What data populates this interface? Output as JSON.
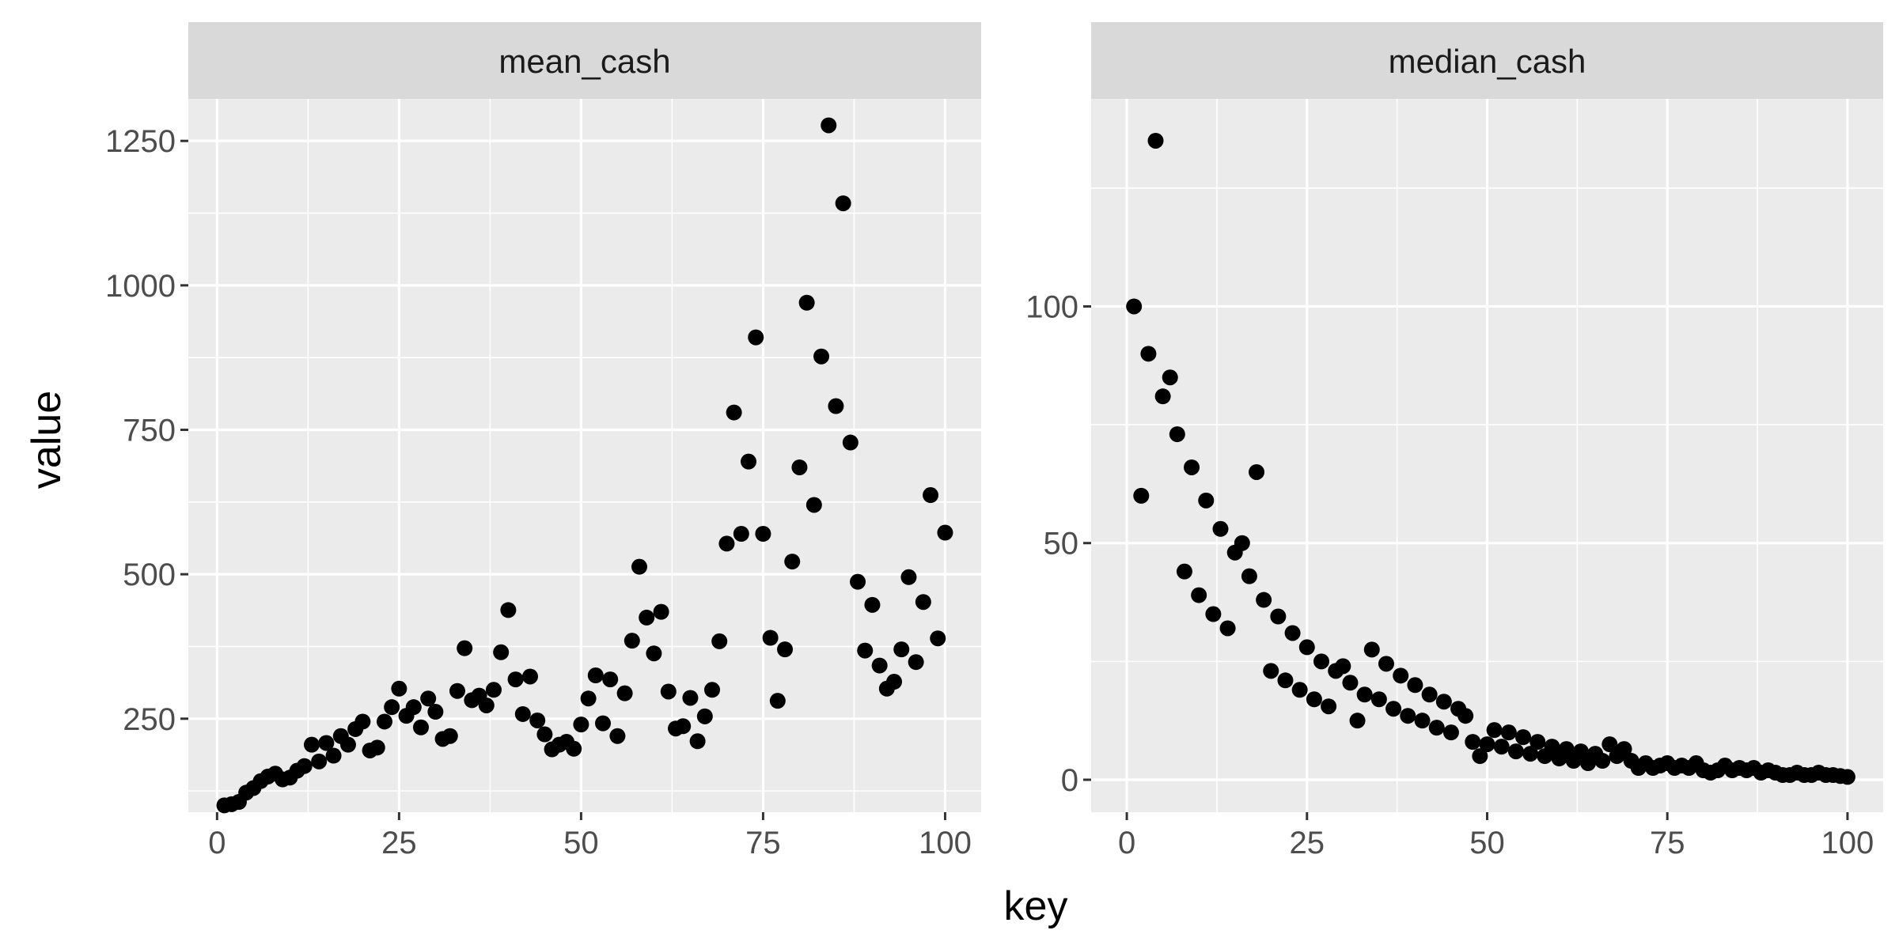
{
  "chart_data": {
    "type": "scatter",
    "xlabel": "key",
    "ylabel": "value",
    "point_color": "#000000",
    "panel_background": "#ebebeb",
    "strip_background": "#d9d9d9",
    "grid": true,
    "panels": [
      {
        "strip": "mean_cash",
        "xlim": [
          -3.95,
          104.95
        ],
        "ylim": [
          88.2,
          1322.8
        ],
        "x_ticks": [
          0,
          25,
          50,
          75,
          100
        ],
        "x_tick_labels": [
          "0",
          "25",
          "50",
          "75",
          "100"
        ],
        "y_ticks": [
          250,
          500,
          750,
          1000,
          1250
        ],
        "y_tick_labels": [
          "250",
          "500",
          "750",
          "1000",
          "1250"
        ],
        "x": [
          1,
          2,
          3,
          4,
          5,
          6,
          7,
          8,
          9,
          10,
          11,
          12,
          13,
          14,
          15,
          16,
          17,
          18,
          19,
          20,
          21,
          22,
          23,
          24,
          25,
          26,
          27,
          28,
          29,
          30,
          31,
          32,
          33,
          34,
          35,
          36,
          37,
          38,
          39,
          40,
          41,
          42,
          43,
          44,
          45,
          46,
          47,
          48,
          49,
          50,
          51,
          52,
          53,
          54,
          55,
          56,
          57,
          58,
          59,
          60,
          61,
          62,
          63,
          64,
          65,
          66,
          67,
          68,
          69,
          70,
          71,
          72,
          73,
          74,
          75,
          76,
          77,
          78,
          79,
          80,
          81,
          82,
          83,
          84,
          85,
          86,
          87,
          88,
          89,
          90,
          91,
          92,
          93,
          94,
          95,
          96,
          97,
          98,
          99,
          100
        ],
        "y": [
          100,
          102,
          106,
          122,
          130,
          142,
          150,
          155,
          145,
          148,
          160,
          168,
          205,
          176,
          208,
          186,
          220,
          205,
          232,
          245,
          195,
          200,
          245,
          270,
          302,
          255,
          270,
          235,
          285,
          262,
          215,
          220,
          298,
          372,
          282,
          290,
          273,
          300,
          365,
          438,
          318,
          258,
          323,
          247,
          223,
          197,
          205,
          210,
          198,
          240,
          285,
          325,
          242,
          318,
          220,
          294,
          385,
          513,
          425,
          363,
          435,
          297,
          233,
          237,
          286,
          211,
          254,
          300,
          384,
          553,
          780,
          570,
          695,
          910,
          570,
          390,
          281,
          370,
          522,
          685,
          970,
          620,
          877,
          1277,
          791,
          1142,
          728,
          487,
          368,
          447,
          342,
          302,
          314,
          370,
          495,
          348,
          452,
          637,
          389,
          572
        ]
      },
      {
        "strip": "median_cash",
        "xlim": [
          -4.95,
          104.95
        ],
        "ylim": [
          -6.85,
          143.85
        ],
        "x_ticks": [
          0,
          25,
          50,
          75,
          100
        ],
        "x_tick_labels": [
          "0",
          "25",
          "50",
          "75",
          "100"
        ],
        "y_ticks": [
          0,
          50,
          100
        ],
        "y_tick_labels": [
          "0",
          "50",
          "100"
        ],
        "x": [
          1,
          2,
          3,
          4,
          5,
          6,
          7,
          8,
          9,
          10,
          11,
          12,
          13,
          14,
          15,
          16,
          17,
          18,
          19,
          20,
          21,
          22,
          23,
          24,
          25,
          26,
          27,
          28,
          29,
          30,
          31,
          32,
          33,
          34,
          35,
          36,
          37,
          38,
          39,
          40,
          41,
          42,
          43,
          44,
          45,
          46,
          47,
          48,
          49,
          50,
          51,
          52,
          53,
          54,
          55,
          56,
          57,
          58,
          59,
          60,
          61,
          62,
          63,
          64,
          65,
          66,
          67,
          68,
          69,
          70,
          71,
          72,
          73,
          74,
          75,
          76,
          77,
          78,
          79,
          80,
          81,
          82,
          83,
          84,
          85,
          86,
          87,
          88,
          89,
          90,
          91,
          92,
          93,
          94,
          95,
          96,
          97,
          98,
          99,
          100
        ],
        "y": [
          100,
          60,
          90,
          135,
          81,
          85,
          73,
          44,
          66,
          39,
          59,
          35,
          53,
          32,
          48,
          50,
          43,
          65,
          38,
          23,
          34.5,
          21,
          31,
          19,
          28,
          17,
          25,
          15.5,
          23,
          24,
          20.5,
          12.5,
          18,
          27.5,
          17,
          24.5,
          15,
          22,
          13.5,
          20,
          12.5,
          18,
          11,
          16.5,
          10,
          15,
          13.5,
          8,
          5,
          7.5,
          10.5,
          7,
          10,
          6,
          9,
          5.5,
          8,
          5,
          7,
          4.5,
          6.5,
          4,
          6,
          3.5,
          5.5,
          4,
          7.5,
          5,
          6.5,
          4,
          2.5,
          3.5,
          2.5,
          3,
          3.5,
          2.5,
          3,
          2.5,
          3.5,
          2,
          1.5,
          2,
          3,
          2,
          2.5,
          2,
          2.5,
          1.5,
          2,
          1.5,
          1,
          1,
          1.5,
          1,
          1,
          1.5,
          1,
          1,
          0.8,
          0.6
        ]
      }
    ]
  }
}
